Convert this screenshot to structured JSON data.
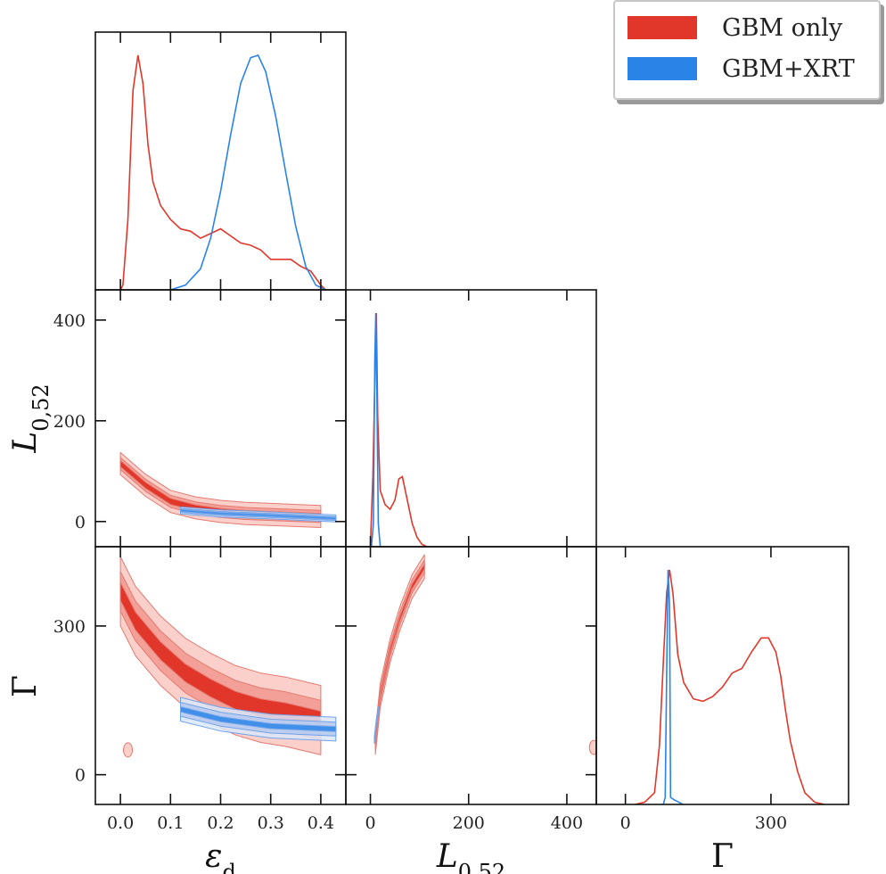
{
  "chart_data": {
    "type": "corner-plot",
    "legend": {
      "placement": "top-right",
      "entries": [
        {
          "name": "GBM only",
          "color": "#e1372a"
        },
        {
          "name": "GBM+XRT",
          "color": "#2a84e8"
        }
      ]
    },
    "parameters": [
      {
        "symbol": "ε",
        "subscript": "d",
        "range": [
          -0.05,
          0.45
        ],
        "ticks": [
          0.0,
          0.1,
          0.2,
          0.3,
          0.4
        ],
        "tick_labels": [
          "0.0",
          "0.1",
          "0.2",
          "0.3",
          "0.4"
        ]
      },
      {
        "symbol": "L",
        "subscript": "0,52",
        "range": [
          -50,
          460
        ],
        "ticks": [
          0,
          200,
          400
        ],
        "tick_labels": [
          "0",
          "200",
          "400"
        ]
      },
      {
        "symbol": "Γ",
        "subscript": "",
        "range": [
          -60,
          460
        ],
        "ticks": [
          0,
          300
        ],
        "tick_labels": [
          "0",
          "300"
        ]
      }
    ],
    "marginals": {
      "eps_d": {
        "GBM only": [
          [
            0.0,
            0.0
          ],
          [
            0.005,
            0.02
          ],
          [
            0.015,
            0.3
          ],
          [
            0.025,
            0.85
          ],
          [
            0.035,
            1.0
          ],
          [
            0.045,
            0.88
          ],
          [
            0.055,
            0.62
          ],
          [
            0.065,
            0.46
          ],
          [
            0.08,
            0.36
          ],
          [
            0.1,
            0.3
          ],
          [
            0.12,
            0.26
          ],
          [
            0.14,
            0.25
          ],
          [
            0.16,
            0.22
          ],
          [
            0.18,
            0.24
          ],
          [
            0.2,
            0.26
          ],
          [
            0.22,
            0.23
          ],
          [
            0.24,
            0.2
          ],
          [
            0.26,
            0.19
          ],
          [
            0.28,
            0.17
          ],
          [
            0.3,
            0.13
          ],
          [
            0.32,
            0.13
          ],
          [
            0.34,
            0.13
          ],
          [
            0.36,
            0.1
          ],
          [
            0.38,
            0.08
          ],
          [
            0.39,
            0.05
          ],
          [
            0.4,
            0.02
          ],
          [
            0.41,
            0.0
          ]
        ],
        "GBM+XRT": [
          [
            0.1,
            0.0
          ],
          [
            0.13,
            0.02
          ],
          [
            0.16,
            0.09
          ],
          [
            0.18,
            0.22
          ],
          [
            0.2,
            0.42
          ],
          [
            0.22,
            0.66
          ],
          [
            0.24,
            0.88
          ],
          [
            0.26,
            0.99
          ],
          [
            0.275,
            1.0
          ],
          [
            0.29,
            0.93
          ],
          [
            0.31,
            0.74
          ],
          [
            0.33,
            0.5
          ],
          [
            0.35,
            0.27
          ],
          [
            0.37,
            0.1
          ],
          [
            0.39,
            0.02
          ],
          [
            0.41,
            0.0
          ]
        ]
      },
      "L_052": {
        "GBM only": [
          [
            0,
            0.0
          ],
          [
            5,
            0.3
          ],
          [
            9,
            0.7
          ],
          [
            12,
            1.0
          ],
          [
            15,
            0.55
          ],
          [
            20,
            0.24
          ],
          [
            30,
            0.18
          ],
          [
            40,
            0.16
          ],
          [
            50,
            0.2
          ],
          [
            58,
            0.29
          ],
          [
            65,
            0.3
          ],
          [
            75,
            0.2
          ],
          [
            85,
            0.1
          ],
          [
            95,
            0.04
          ],
          [
            105,
            0.01
          ],
          [
            115,
            0.0
          ]
        ],
        "GBM+XRT": [
          [
            2,
            0.0
          ],
          [
            6,
            0.1
          ],
          [
            9,
            0.8
          ],
          [
            11,
            1.0
          ],
          [
            13,
            0.7
          ],
          [
            16,
            0.1
          ],
          [
            20,
            0.0
          ]
        ]
      },
      "Gamma": {
        "GBM only": [
          [
            20,
            0.0
          ],
          [
            40,
            0.01
          ],
          [
            60,
            0.05
          ],
          [
            70,
            0.25
          ],
          [
            78,
            0.6
          ],
          [
            85,
            0.9
          ],
          [
            91,
            1.0
          ],
          [
            98,
            0.9
          ],
          [
            108,
            0.64
          ],
          [
            120,
            0.52
          ],
          [
            140,
            0.45
          ],
          [
            160,
            0.44
          ],
          [
            180,
            0.46
          ],
          [
            200,
            0.5
          ],
          [
            220,
            0.56
          ],
          [
            240,
            0.58
          ],
          [
            260,
            0.65
          ],
          [
            280,
            0.71
          ],
          [
            295,
            0.71
          ],
          [
            310,
            0.65
          ],
          [
            320,
            0.55
          ],
          [
            330,
            0.4
          ],
          [
            340,
            0.27
          ],
          [
            355,
            0.14
          ],
          [
            370,
            0.05
          ],
          [
            390,
            0.01
          ],
          [
            410,
            0.0
          ]
        ],
        "GBM+XRT": [
          [
            78,
            0.0
          ],
          [
            82,
            0.03
          ],
          [
            85,
            0.55
          ],
          [
            88,
            1.0
          ],
          [
            91,
            0.85
          ],
          [
            93,
            0.03
          ],
          [
            100,
            0.02
          ],
          [
            110,
            0.01
          ],
          [
            118,
            0.0
          ]
        ]
      }
    },
    "joint": {
      "eps_d_vs_L_052": {
        "GBM only": {
          "curve": [
            [
              0.0,
              115
            ],
            [
              0.05,
              72
            ],
            [
              0.1,
              40
            ],
            [
              0.15,
              27
            ],
            [
              0.2,
              20
            ],
            [
              0.25,
              16
            ],
            [
              0.3,
              14
            ],
            [
              0.35,
              12
            ],
            [
              0.4,
              10
            ]
          ],
          "widths": [
            22,
            12,
            6
          ]
        },
        "GBM+XRT": {
          "curve": [
            [
              0.12,
              22
            ],
            [
              0.2,
              16
            ],
            [
              0.3,
              12
            ],
            [
              0.43,
              6
            ]
          ],
          "widths": [
            7,
            4,
            2
          ]
        }
      },
      "eps_d_vs_Gamma": {
        "GBM only": {
          "curve": [
            [
              0.0,
              370
            ],
            [
              0.03,
              310
            ],
            [
              0.08,
              250
            ],
            [
              0.13,
              205
            ],
            [
              0.18,
              175
            ],
            [
              0.23,
              150
            ],
            [
              0.28,
              135
            ],
            [
              0.33,
              127
            ],
            [
              0.4,
              110
            ]
          ],
          "widths": [
            70,
            40,
            18
          ],
          "island": [
            0.015,
            50
          ]
        },
        "GBM+XRT": {
          "curve": [
            [
              0.12,
              132
            ],
            [
              0.2,
              112
            ],
            [
              0.3,
              98
            ],
            [
              0.43,
              92
            ]
          ],
          "widths": [
            24,
            14,
            5
          ]
        }
      },
      "L_052_vs_Gamma": {
        "GBM only": {
          "curve": [
            [
              10,
              65
            ],
            [
              20,
              160
            ],
            [
              40,
              250
            ],
            [
              60,
              315
            ],
            [
              85,
              380
            ],
            [
              110,
              420
            ]
          ],
          "widths": [
            24,
            13,
            5
          ],
          "island": [
            455,
            55
          ]
        },
        "GBM+XRT": {
          "curve": [
            [
              8,
              70
            ],
            [
              12,
              105
            ],
            [
              16,
              130
            ]
          ],
          "widths": [
            7,
            4,
            2
          ]
        }
      }
    }
  }
}
